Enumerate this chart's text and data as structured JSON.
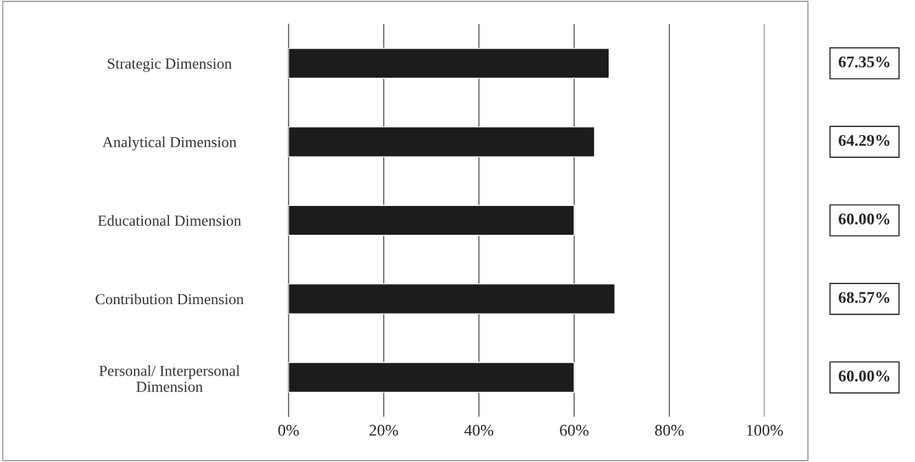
{
  "chart_data": {
    "type": "bar",
    "orientation": "horizontal",
    "categories": [
      "Strategic Dimension",
      "Analytical Dimension",
      "Educational Dimension",
      "Contribution Dimension",
      "Personal/ Interpersonal\nDimension"
    ],
    "values": [
      67.35,
      64.29,
      60.0,
      68.57,
      60.0
    ],
    "value_labels": [
      "67.35%",
      "64.29%",
      "60.00%",
      "68.57%",
      "60.00%"
    ],
    "color": "#1c1c1c",
    "xlim": [
      0,
      100
    ],
    "xticks": [
      {
        "value": 0,
        "label": "0%"
      },
      {
        "value": 20,
        "label": "20%"
      },
      {
        "value": 40,
        "label": "40%"
      },
      {
        "value": 60,
        "label": "60%"
      },
      {
        "value": 80,
        "label": "80%"
      },
      {
        "value": 100,
        "label": "100%"
      }
    ],
    "grid": "x"
  }
}
